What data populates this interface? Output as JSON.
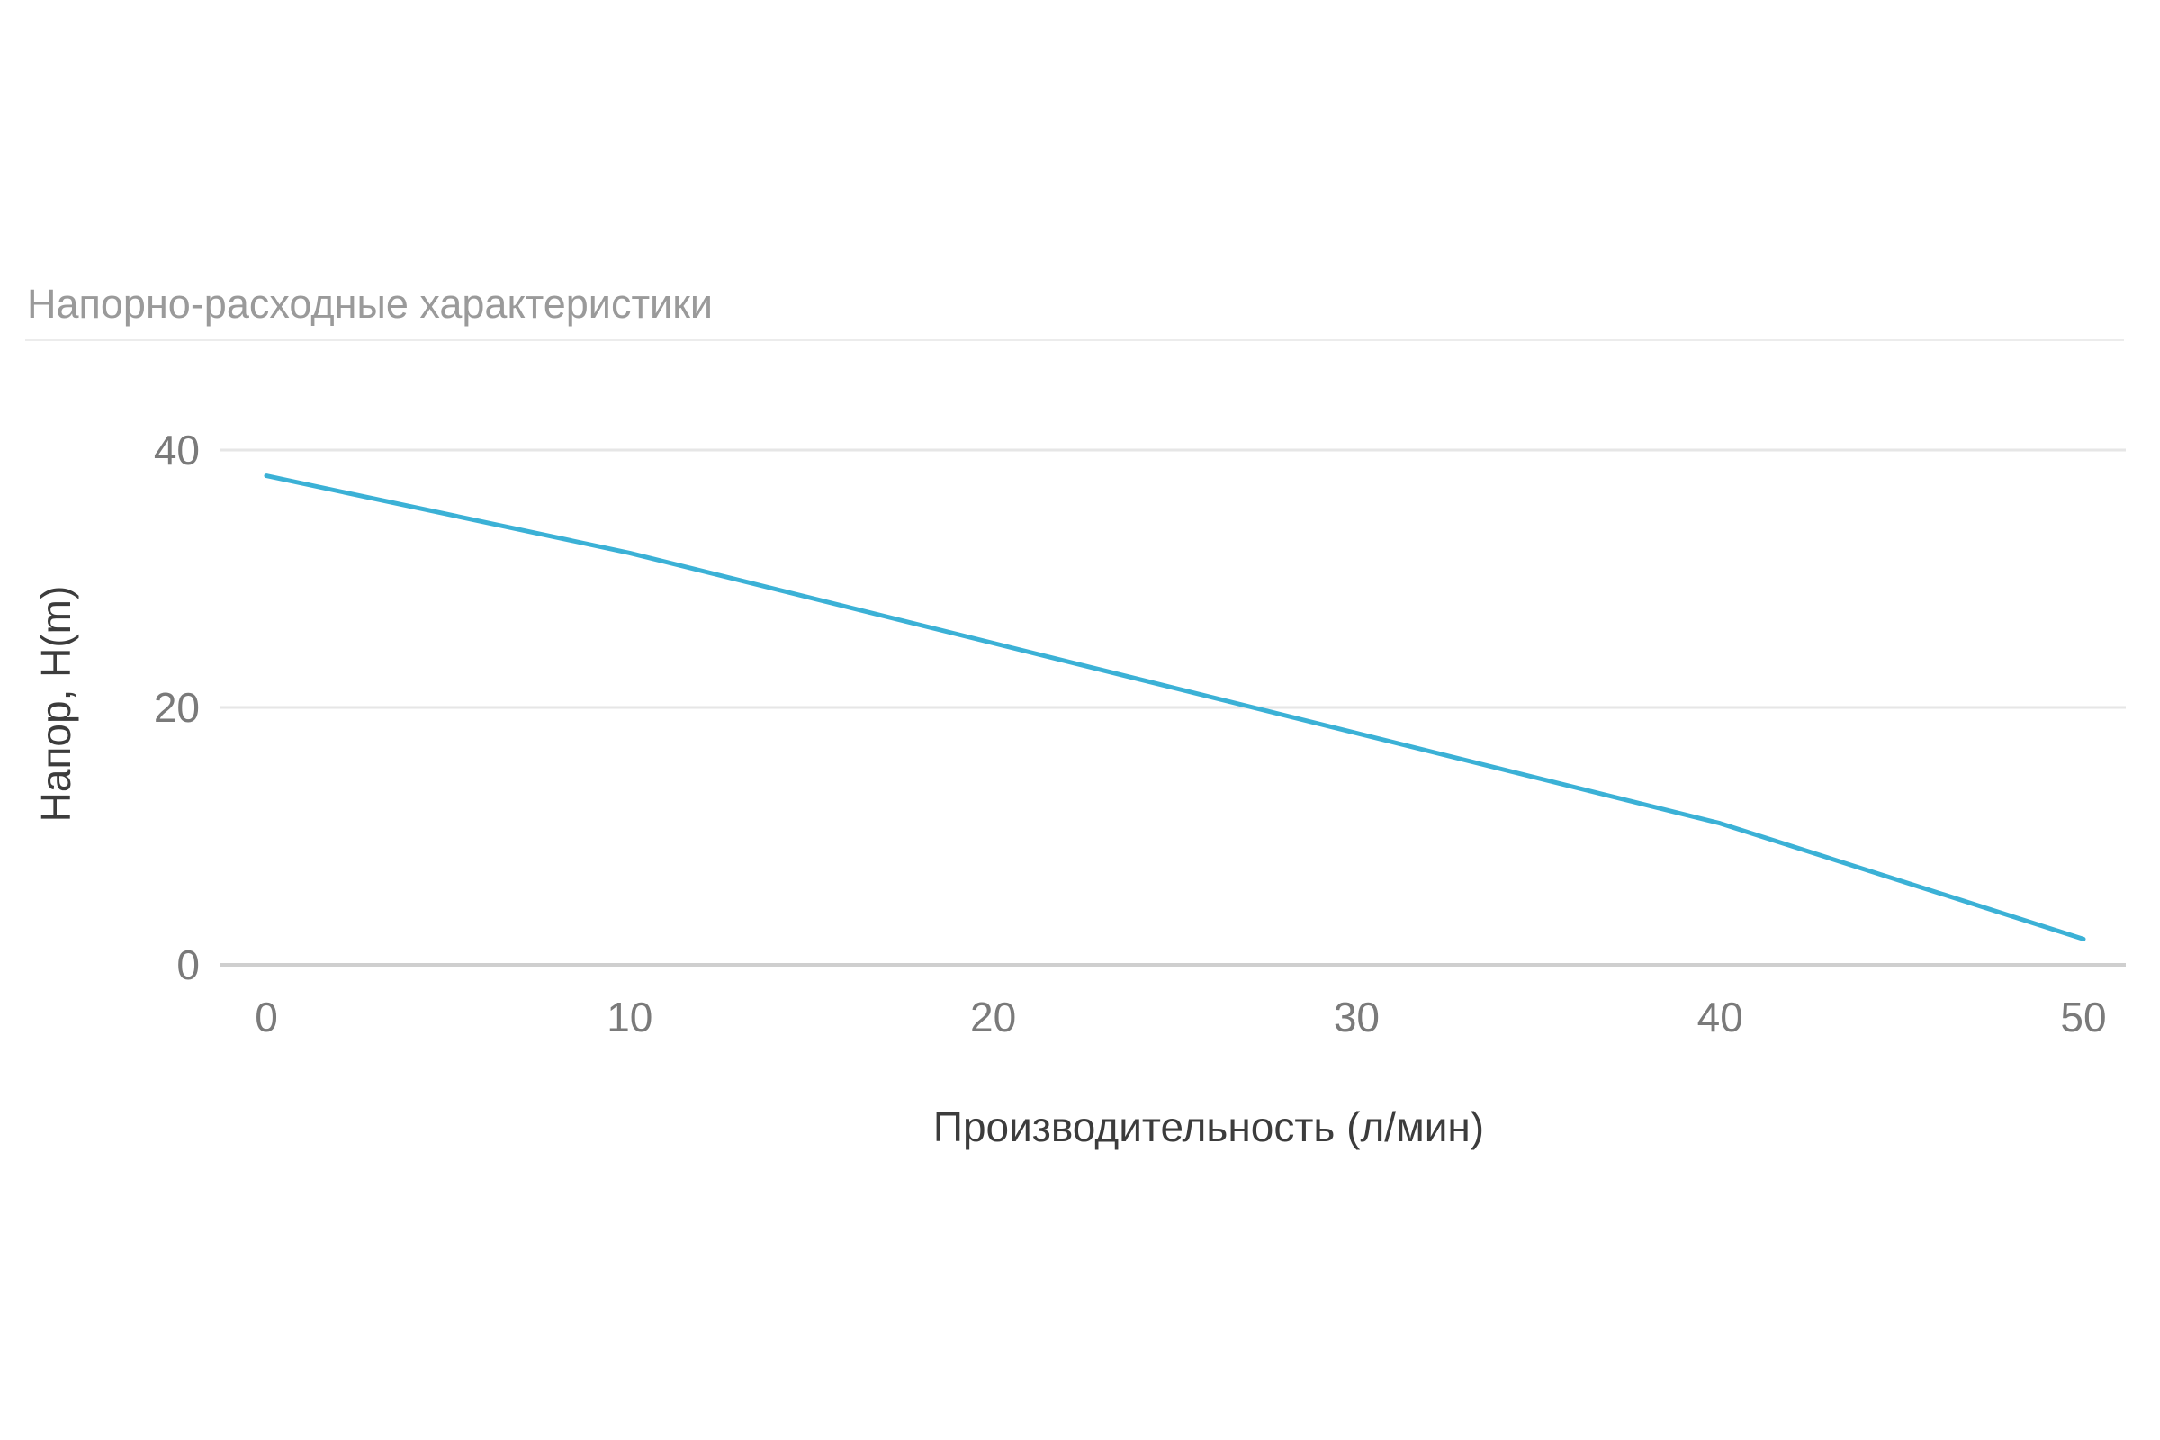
{
  "panel": {
    "title": "Напорно-расходные характеристики"
  },
  "chart_data": {
    "type": "line",
    "title": "",
    "xlabel": "Производительность (л/мин)",
    "ylabel": "Напор, H(m)",
    "xlim": [
      0,
      50
    ],
    "ylim": [
      0,
      40
    ],
    "x_ticks": [
      0,
      10,
      20,
      30,
      40,
      50
    ],
    "y_ticks": [
      0,
      20,
      40
    ],
    "grid": true,
    "legend": "none",
    "series": [
      {
        "color": "#3bb1d6",
        "x": [
          0,
          10,
          20,
          30,
          40,
          50
        ],
        "y": [
          38,
          32,
          25,
          18,
          11,
          2
        ]
      }
    ]
  }
}
